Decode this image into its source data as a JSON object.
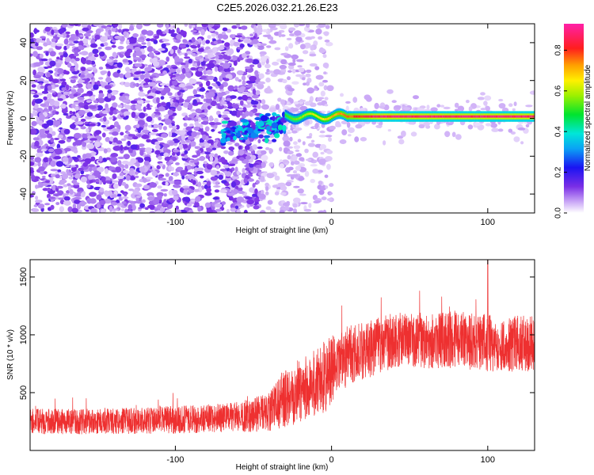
{
  "chart_data": [
    {
      "type": "heatmap",
      "title": "C2E5.2026.032.21.26.E23",
      "xlabel": "Height of straight line (km)",
      "ylabel": "Frequency (Hz)",
      "xlim": [
        -193,
        130
      ],
      "ylim": [
        -50,
        50
      ],
      "xticks": [
        -100,
        0,
        100
      ],
      "xtick_labels": [
        "-100",
        "0",
        "100"
      ],
      "yticks": [
        -40,
        -20,
        0,
        20,
        40
      ],
      "ytick_labels": [
        "-40",
        "-20",
        "0",
        "20",
        "40"
      ],
      "colorbar": {
        "label": "Normalized spectral amplitude",
        "range": [
          0.0,
          0.93
        ],
        "ticks": [
          0.0,
          0.2,
          0.4,
          0.6,
          0.8
        ],
        "tick_labels": [
          "0.0",
          "0.2",
          "0.4",
          "0.6",
          "0.8"
        ],
        "colormap": "rainbow (white-violet-blue-cyan-green-yellow-red-magenta)"
      },
      "features": {
        "broadband_noise_region_km": [
          -193,
          -45
        ],
        "sparse_noise_region_km": [
          -45,
          0
        ],
        "dispersed_onset_km": [
          -70,
          -30
        ],
        "onset_freq_hz": -8,
        "carrier_line_start_km": -30,
        "carrier_freq_hz": 1,
        "carrier_peak_amplitude": 0.9
      }
    },
    {
      "type": "line",
      "xlabel": "Height of straight line (km)",
      "ylabel": "SNR (10 * v/v)",
      "xlim": [
        -193,
        130
      ],
      "ylim": [
        0,
        1650
      ],
      "xticks": [
        -100,
        0,
        100
      ],
      "xtick_labels": [
        "-100",
        "0",
        "100"
      ],
      "yticks": [
        500,
        1000,
        1500
      ],
      "ytick_labels": [
        "500",
        "1000",
        "1500"
      ],
      "series": [
        {
          "name": "SNR",
          "color": "#ee3030",
          "envelope_x": [
            -193,
            -150,
            -100,
            -60,
            -40,
            -30,
            -20,
            -10,
            0,
            10,
            20,
            30,
            40,
            60,
            80,
            100,
            110,
            120,
            130
          ],
          "envelope_mean": [
            250,
            250,
            265,
            290,
            330,
            450,
            520,
            580,
            680,
            820,
            860,
            900,
            960,
            950,
            960,
            930,
            900,
            930,
            920
          ],
          "envelope_spread": [
            110,
            110,
            120,
            130,
            170,
            250,
            280,
            300,
            320,
            260,
            250,
            250,
            240,
            240,
            250,
            250,
            240,
            240,
            240
          ],
          "peak_value": 1650,
          "peak_x": 100
        }
      ]
    }
  ],
  "colors": {
    "line": "#ee3030",
    "axis": "#000000",
    "background": "#ffffff"
  }
}
